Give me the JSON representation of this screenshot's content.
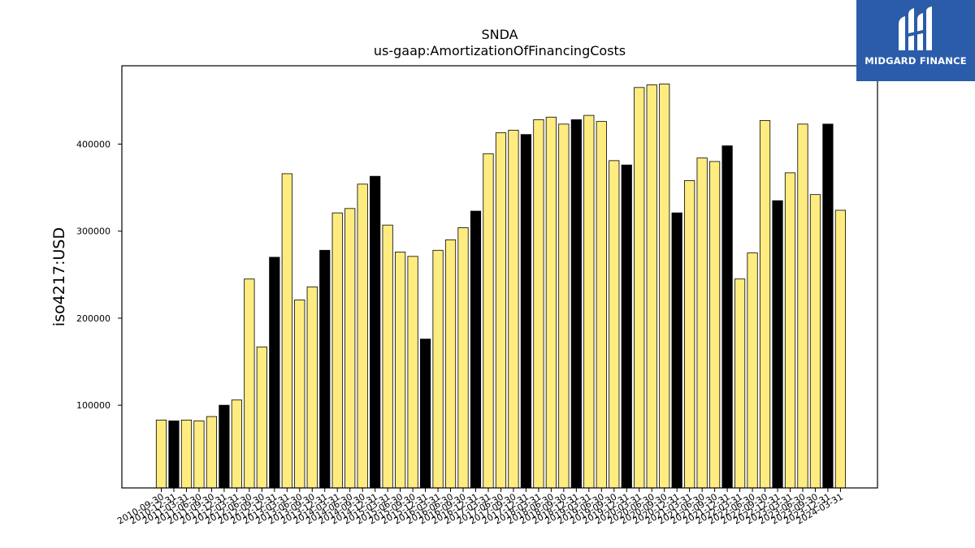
{
  "logo": {
    "text": "MIDGARD FINANCE",
    "bg_color": "#2a5caa"
  },
  "chart_data": {
    "type": "bar",
    "title": "SNDA",
    "subtitle": "us-gaap:AmortizationOfFinancingCosts",
    "ylabel": "iso4217:USD",
    "xlabel": "",
    "ylim": [
      5000,
      490000
    ],
    "yticks": [
      100000,
      200000,
      300000,
      400000
    ],
    "grid": false,
    "colors": {
      "light": "#ffec80",
      "dark": "#000000",
      "edge": "#000000"
    },
    "categories": [
      "2010-09-30",
      "2010-12-31",
      "2011-03-31",
      "2011-06-30",
      "2011-09-30",
      "2011-12-31",
      "2012-03-31",
      "2012-06-30",
      "2012-09-30",
      "2012-12-31",
      "2013-03-31",
      "2013-06-30",
      "2013-09-30",
      "2013-12-31",
      "2014-03-31",
      "2014-06-30",
      "2014-09-30",
      "2014-12-31",
      "2015-03-31",
      "2015-06-30",
      "2015-09-30",
      "2015-12-31",
      "2016-03-31",
      "2016-06-30",
      "2016-09-30",
      "2016-12-31",
      "2017-03-31",
      "2017-06-30",
      "2017-09-30",
      "2017-12-31",
      "2018-03-31",
      "2018-06-30",
      "2018-09-30",
      "2018-12-31",
      "2019-03-31",
      "2019-06-30",
      "2019-09-30",
      "2019-12-31",
      "2020-03-31",
      "2020-06-30",
      "2020-09-30",
      "2020-12-31",
      "2021-03-31",
      "2021-06-30",
      "2021-09-30",
      "2021-12-31",
      "2022-03-31",
      "2022-06-30",
      "2022-09-30",
      "2022-12-31",
      "2023-03-31",
      "2023-06-30",
      "2023-09-30",
      "2023-12-31",
      "2024-03-31"
    ],
    "values": [
      83000,
      82000,
      83000,
      82000,
      87000,
      100000,
      106000,
      245000,
      167000,
      270000,
      366000,
      221000,
      236000,
      278000,
      321000,
      326000,
      354000,
      363000,
      307000,
      276000,
      271000,
      176000,
      278000,
      290000,
      304000,
      323000,
      389000,
      413000,
      416000,
      411000,
      428000,
      431000,
      423000,
      428000,
      433000,
      426000,
      381000,
      376000,
      465000,
      468000,
      469000,
      321000,
      358000,
      384000,
      380000,
      398000,
      245000,
      275000,
      427000,
      335000,
      367000,
      423000,
      342000,
      423000,
      324000
    ],
    "bar_shades": [
      "light",
      "dark",
      "light",
      "light",
      "light",
      "dark",
      "light",
      "light",
      "light",
      "dark",
      "light",
      "light",
      "light",
      "dark",
      "light",
      "light",
      "light",
      "dark",
      "light",
      "light",
      "light",
      "dark",
      "light",
      "light",
      "light",
      "dark",
      "light",
      "light",
      "light",
      "dark",
      "light",
      "light",
      "light",
      "dark",
      "light",
      "light",
      "light",
      "dark",
      "light",
      "light",
      "light",
      "dark",
      "light",
      "light",
      "light",
      "dark",
      "light",
      "light",
      "light",
      "dark",
      "light",
      "light",
      "light",
      "dark",
      "light"
    ]
  }
}
